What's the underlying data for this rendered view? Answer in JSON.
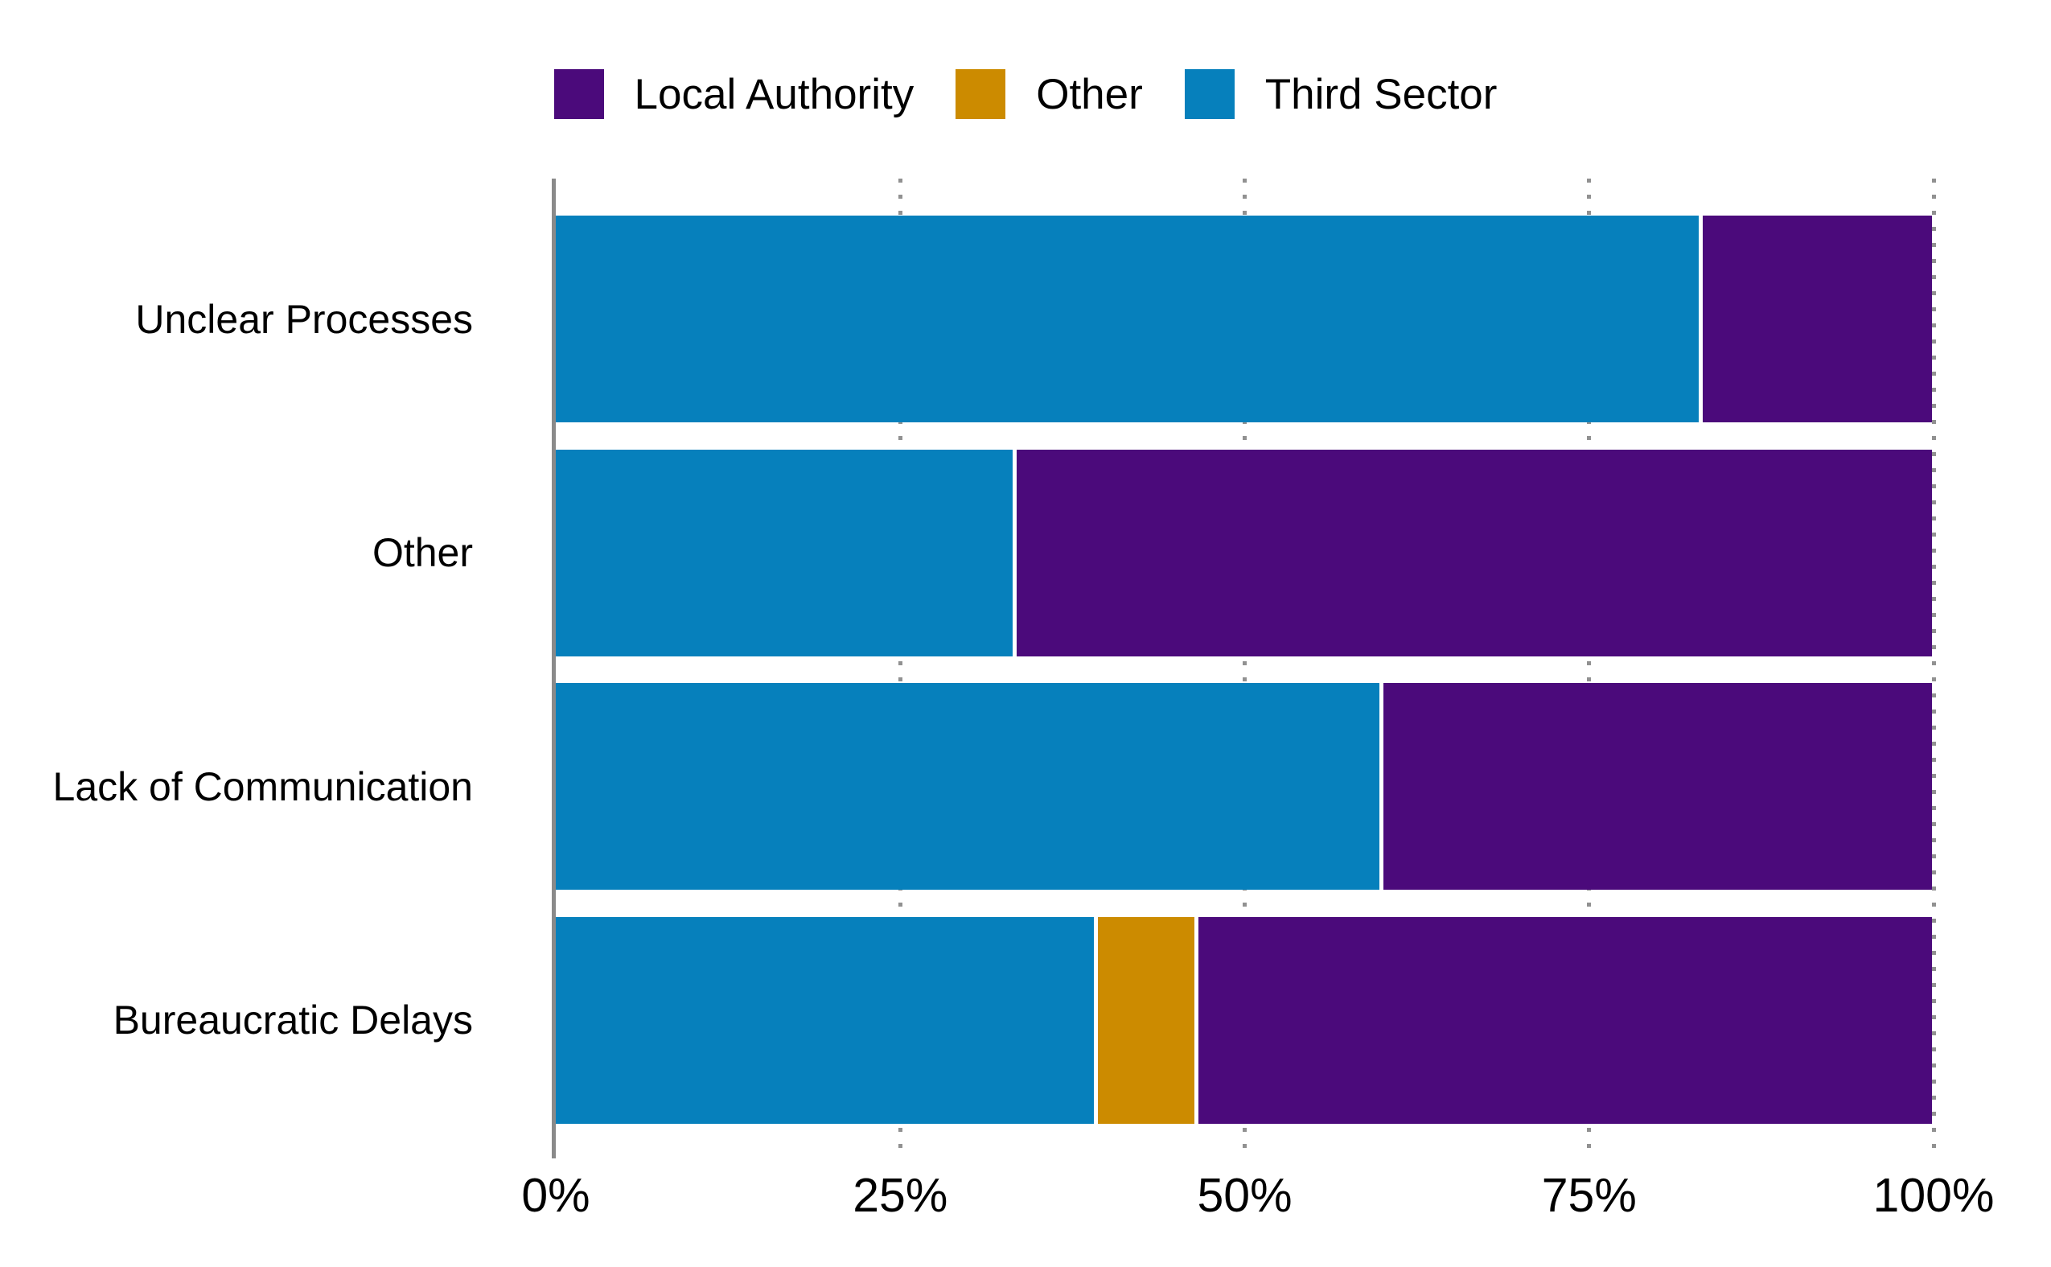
{
  "legend": {
    "position": "top",
    "items": [
      {
        "label": "Local Authority",
        "color": "#4B0A7B"
      },
      {
        "label": "Other",
        "color": "#CC8B00"
      },
      {
        "label": "Third Sector",
        "color": "#0680BC"
      }
    ]
  },
  "chart_data": {
    "type": "bar",
    "subtype": "horizontal_stacked_percent",
    "title": "",
    "xlabel": "",
    "ylabel": "",
    "categories": [
      "Unclear Processes",
      "Other",
      "Lack of Communication",
      "Bureaucratic Delays"
    ],
    "series": [
      {
        "name": "Third Sector",
        "color": "#0680BC",
        "values": [
          83.3,
          33.3,
          60.0,
          39.3
        ]
      },
      {
        "name": "Other",
        "color": "#CC8B00",
        "values": [
          0.0,
          0.0,
          0.0,
          7.1
        ]
      },
      {
        "name": "Local Authority",
        "color": "#4B0A7B",
        "values": [
          16.7,
          66.7,
          40.0,
          53.6
        ]
      }
    ],
    "xlim": [
      0,
      100
    ],
    "x_ticks": {
      "values": [
        0,
        25,
        50,
        75,
        100
      ],
      "labels": [
        "0%",
        "25%",
        "50%",
        "75%",
        "100%"
      ]
    },
    "grid": {
      "vertical_style": "dotted",
      "grid_color": "#919191",
      "axis_line_color": "#8A8A8A"
    },
    "segment_separator_color": "#FFFFFF",
    "legend_position": "top"
  }
}
